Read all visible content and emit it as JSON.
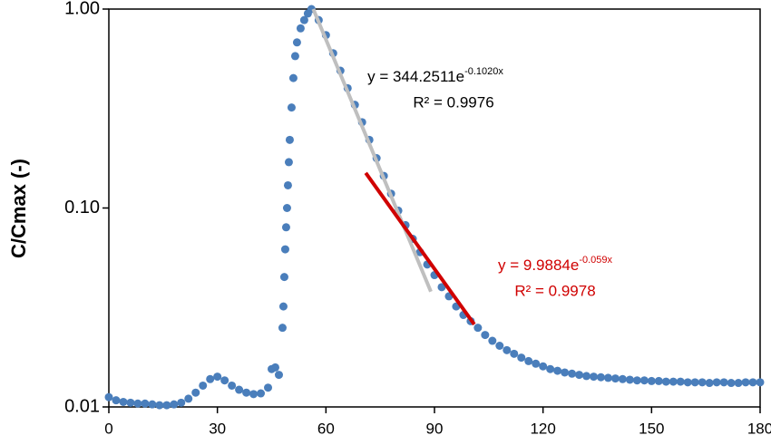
{
  "chart_data": {
    "type": "scatter",
    "y_label": "C/Cmax (-)",
    "log_y": true,
    "xlim": [
      0,
      180
    ],
    "xticks": [
      0,
      30,
      60,
      90,
      120,
      150,
      180
    ],
    "ylim": [
      0.01,
      1
    ],
    "yticks": [
      0.01,
      {
        "value": 0.1,
        "label": "0.10"
      },
      {
        "value": 1,
        "label": "1.00"
      }
    ],
    "series": [
      {
        "color": "#4a7ebb",
        "x": [
          0,
          2,
          4,
          6,
          8,
          10,
          12,
          14,
          16,
          18,
          20,
          22,
          24,
          26,
          28,
          30,
          32,
          34,
          36,
          38,
          40,
          42,
          44,
          45,
          46,
          47,
          48,
          48.25,
          48.5,
          48.75,
          49,
          49.25,
          49.5,
          49.75,
          50,
          50.5,
          51,
          51.5,
          52,
          53,
          54,
          55,
          56,
          58,
          60,
          62,
          64,
          66,
          68,
          70,
          72,
          74,
          76,
          78,
          80,
          82,
          84,
          86,
          88,
          90,
          92,
          94,
          96,
          98,
          100,
          102,
          104,
          106,
          108,
          110,
          112,
          114,
          116,
          118,
          120,
          122,
          124,
          126,
          128,
          130,
          132,
          134,
          136,
          138,
          140,
          142,
          144,
          146,
          148,
          150,
          152,
          154,
          156,
          158,
          160,
          162,
          164,
          166,
          168,
          170,
          172,
          174,
          176,
          178,
          180
        ],
        "values": [
          0.0112,
          0.0108,
          0.0106,
          0.0105,
          0.0104,
          0.0104,
          0.0103,
          0.0102,
          0.0102,
          0.0103,
          0.0105,
          0.011,
          0.0118,
          0.0128,
          0.0138,
          0.0142,
          0.0136,
          0.0128,
          0.0122,
          0.0118,
          0.0116,
          0.0117,
          0.0125,
          0.0155,
          0.0158,
          0.0145,
          0.025,
          0.032,
          0.045,
          0.062,
          0.08,
          0.1,
          0.13,
          0.17,
          0.22,
          0.32,
          0.45,
          0.58,
          0.68,
          0.8,
          0.88,
          0.95,
          1.0,
          0.88,
          0.74,
          0.6,
          0.49,
          0.4,
          0.33,
          0.27,
          0.22,
          0.178,
          0.145,
          0.118,
          0.097,
          0.082,
          0.07,
          0.06,
          0.052,
          0.046,
          0.04,
          0.036,
          0.032,
          0.029,
          0.027,
          0.025,
          0.023,
          0.0215,
          0.0203,
          0.0193,
          0.0185,
          0.0177,
          0.017,
          0.0165,
          0.016,
          0.0155,
          0.0152,
          0.0149,
          0.0147,
          0.0145,
          0.0143,
          0.0142,
          0.0141,
          0.014,
          0.0139,
          0.0138,
          0.0137,
          0.0136,
          0.0136,
          0.0135,
          0.0135,
          0.0134,
          0.0134,
          0.0134,
          0.0133,
          0.0133,
          0.0133,
          0.0132,
          0.0133,
          0.0133,
          0.0132,
          0.0132,
          0.0133,
          0.0133,
          0.0133
        ]
      }
    ],
    "trendlines": [
      {
        "color": "#bfbfbf",
        "x": [
          56.5,
          89
        ],
        "values": [
          1.0,
          0.038
        ]
      },
      {
        "color": "#d00000",
        "x": [
          71,
          101
        ],
        "values": [
          0.15,
          0.026
        ]
      }
    ],
    "annotations": [
      {
        "text": "y = 344.2511e",
        "sup": "-0.1020x",
        "r2": "R² = 0.9976",
        "color": "#000000"
      },
      {
        "text": "y = 9.9884e",
        "sup": "-0.059x",
        "r2": "R² = 0.9978",
        "color": "#d00000"
      }
    ]
  }
}
